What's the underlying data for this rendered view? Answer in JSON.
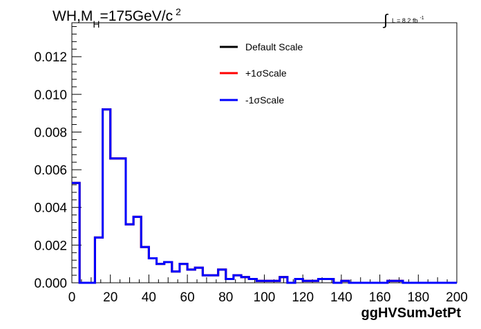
{
  "chart_data": {
    "type": "histogram-step",
    "title": "WH,M",
    "title_sub": "H",
    "title_rest": "=175GeV/c",
    "title_sup": "2",
    "lumi_symbol": "∫",
    "lumi_text": "L = 8.2 fb",
    "lumi_sup": "-1",
    "xlabel": "ggHVSumJetPt",
    "ylabel": "",
    "xlim": [
      0,
      200
    ],
    "ylim": [
      0,
      0.0138
    ],
    "x_ticks": [
      0,
      20,
      40,
      60,
      80,
      100,
      120,
      140,
      160,
      180,
      200
    ],
    "x_tick_labels": [
      "0",
      "20",
      "40",
      "60",
      "80",
      "100",
      "120",
      "140",
      "160",
      "180",
      "200"
    ],
    "y_ticks": [
      0.0,
      0.002,
      0.004,
      0.006,
      0.008,
      0.01,
      0.012
    ],
    "y_tick_labels": [
      "0.000",
      "0.002",
      "0.004",
      "0.006",
      "0.008",
      "0.010",
      "0.012"
    ],
    "bin_width": 4,
    "bin_low_edges": [
      0,
      4,
      8,
      12,
      16,
      20,
      24,
      28,
      32,
      36,
      40,
      44,
      48,
      52,
      56,
      60,
      64,
      68,
      72,
      76,
      80,
      84,
      88,
      92,
      96,
      100,
      104,
      108,
      112,
      116,
      120,
      124,
      128,
      132,
      136,
      140,
      144,
      148,
      152,
      156,
      160,
      164,
      168,
      172,
      176,
      180,
      184,
      188,
      192,
      196
    ],
    "series": [
      {
        "name": "Default Scale",
        "color": "#000000",
        "values": [
          0.0053,
          0.0,
          0.0,
          0.0024,
          0.0092,
          0.0066,
          0.0066,
          0.0031,
          0.0035,
          0.0019,
          0.0013,
          0.001,
          0.0011,
          0.0006,
          0.001,
          0.0007,
          0.0008,
          0.0004,
          0.0004,
          0.0007,
          0.0002,
          0.0004,
          0.0003,
          0.0002,
          0.0001,
          0.0001,
          0.0001,
          0.0003,
          0.0,
          0.0002,
          0.0001,
          0.0001,
          0.0002,
          0.0002,
          0.0,
          0.0001,
          0.0,
          0.0,
          0.0,
          0.0,
          0.0,
          0.0001,
          0.0001,
          0.0,
          0.0,
          0.0,
          0.0,
          0.0,
          0.0,
          0.0
        ]
      },
      {
        "name": "+1σScale",
        "color": "#ff0000",
        "values": [
          0.0053,
          0.0,
          0.0,
          0.0024,
          0.0092,
          0.0066,
          0.0066,
          0.0031,
          0.0035,
          0.0019,
          0.0013,
          0.001,
          0.0011,
          0.0006,
          0.001,
          0.0007,
          0.0008,
          0.0004,
          0.0004,
          0.0007,
          0.0002,
          0.0004,
          0.0003,
          0.0002,
          0.0001,
          0.0001,
          0.0001,
          0.0003,
          0.0,
          0.0002,
          0.0001,
          0.0001,
          0.0002,
          0.0002,
          0.0,
          0.0001,
          0.0,
          0.0,
          0.0,
          0.0,
          0.0,
          0.0001,
          0.0001,
          0.0,
          0.0,
          0.0,
          0.0,
          0.0,
          0.0,
          0.0
        ]
      },
      {
        "name": "-1σScale",
        "color": "#0000ff",
        "values": [
          0.0053,
          0.0,
          0.0,
          0.0024,
          0.0092,
          0.0066,
          0.0066,
          0.0031,
          0.0035,
          0.0019,
          0.0013,
          0.001,
          0.0011,
          0.0006,
          0.001,
          0.0007,
          0.0008,
          0.0004,
          0.0004,
          0.0007,
          0.0002,
          0.0004,
          0.0003,
          0.0002,
          0.0001,
          0.0001,
          0.0001,
          0.0003,
          0.0,
          0.0002,
          0.0001,
          0.0001,
          0.0002,
          0.0002,
          0.0,
          0.0001,
          0.0,
          0.0,
          0.0,
          0.0,
          0.0,
          0.0001,
          0.0001,
          0.0,
          0.0,
          0.0,
          0.0,
          0.0,
          0.0,
          0.0
        ]
      }
    ],
    "legend": {
      "placement": "top-center",
      "entries": [
        "Default Scale",
        "+1σScale",
        "-1σScale"
      ]
    },
    "grid": false
  }
}
